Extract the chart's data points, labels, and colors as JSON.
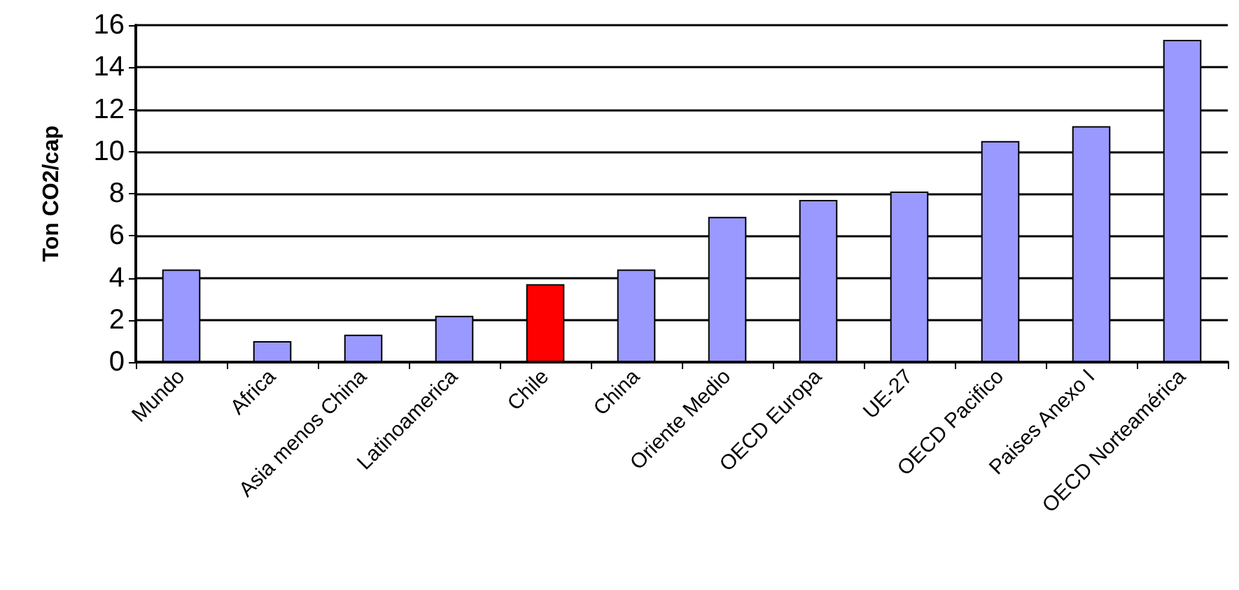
{
  "chart_data": {
    "type": "bar",
    "ylabel": "Ton CO2/cap",
    "categories": [
      "Mundo",
      "Africa",
      "Asia menos China",
      "Latinoamerica",
      "Chile",
      "China",
      "Oriente Medio",
      "OECD Europa",
      "UE-27",
      "OECD Pacifico",
      "Paises Anexo I",
      "OECD Norteamérica"
    ],
    "values": [
      4.4,
      1.0,
      1.3,
      2.2,
      3.7,
      4.4,
      6.9,
      7.7,
      8.1,
      10.5,
      11.2,
      15.3
    ],
    "colors": [
      "#9999ff",
      "#9999ff",
      "#9999ff",
      "#9999ff",
      "#ff0000",
      "#9999ff",
      "#9999ff",
      "#9999ff",
      "#9999ff",
      "#9999ff",
      "#9999ff",
      "#9999ff"
    ],
    "ylim": [
      0,
      16
    ],
    "yticks": [
      0,
      2,
      4,
      6,
      8,
      10,
      12,
      14,
      16
    ],
    "grid": "y"
  }
}
